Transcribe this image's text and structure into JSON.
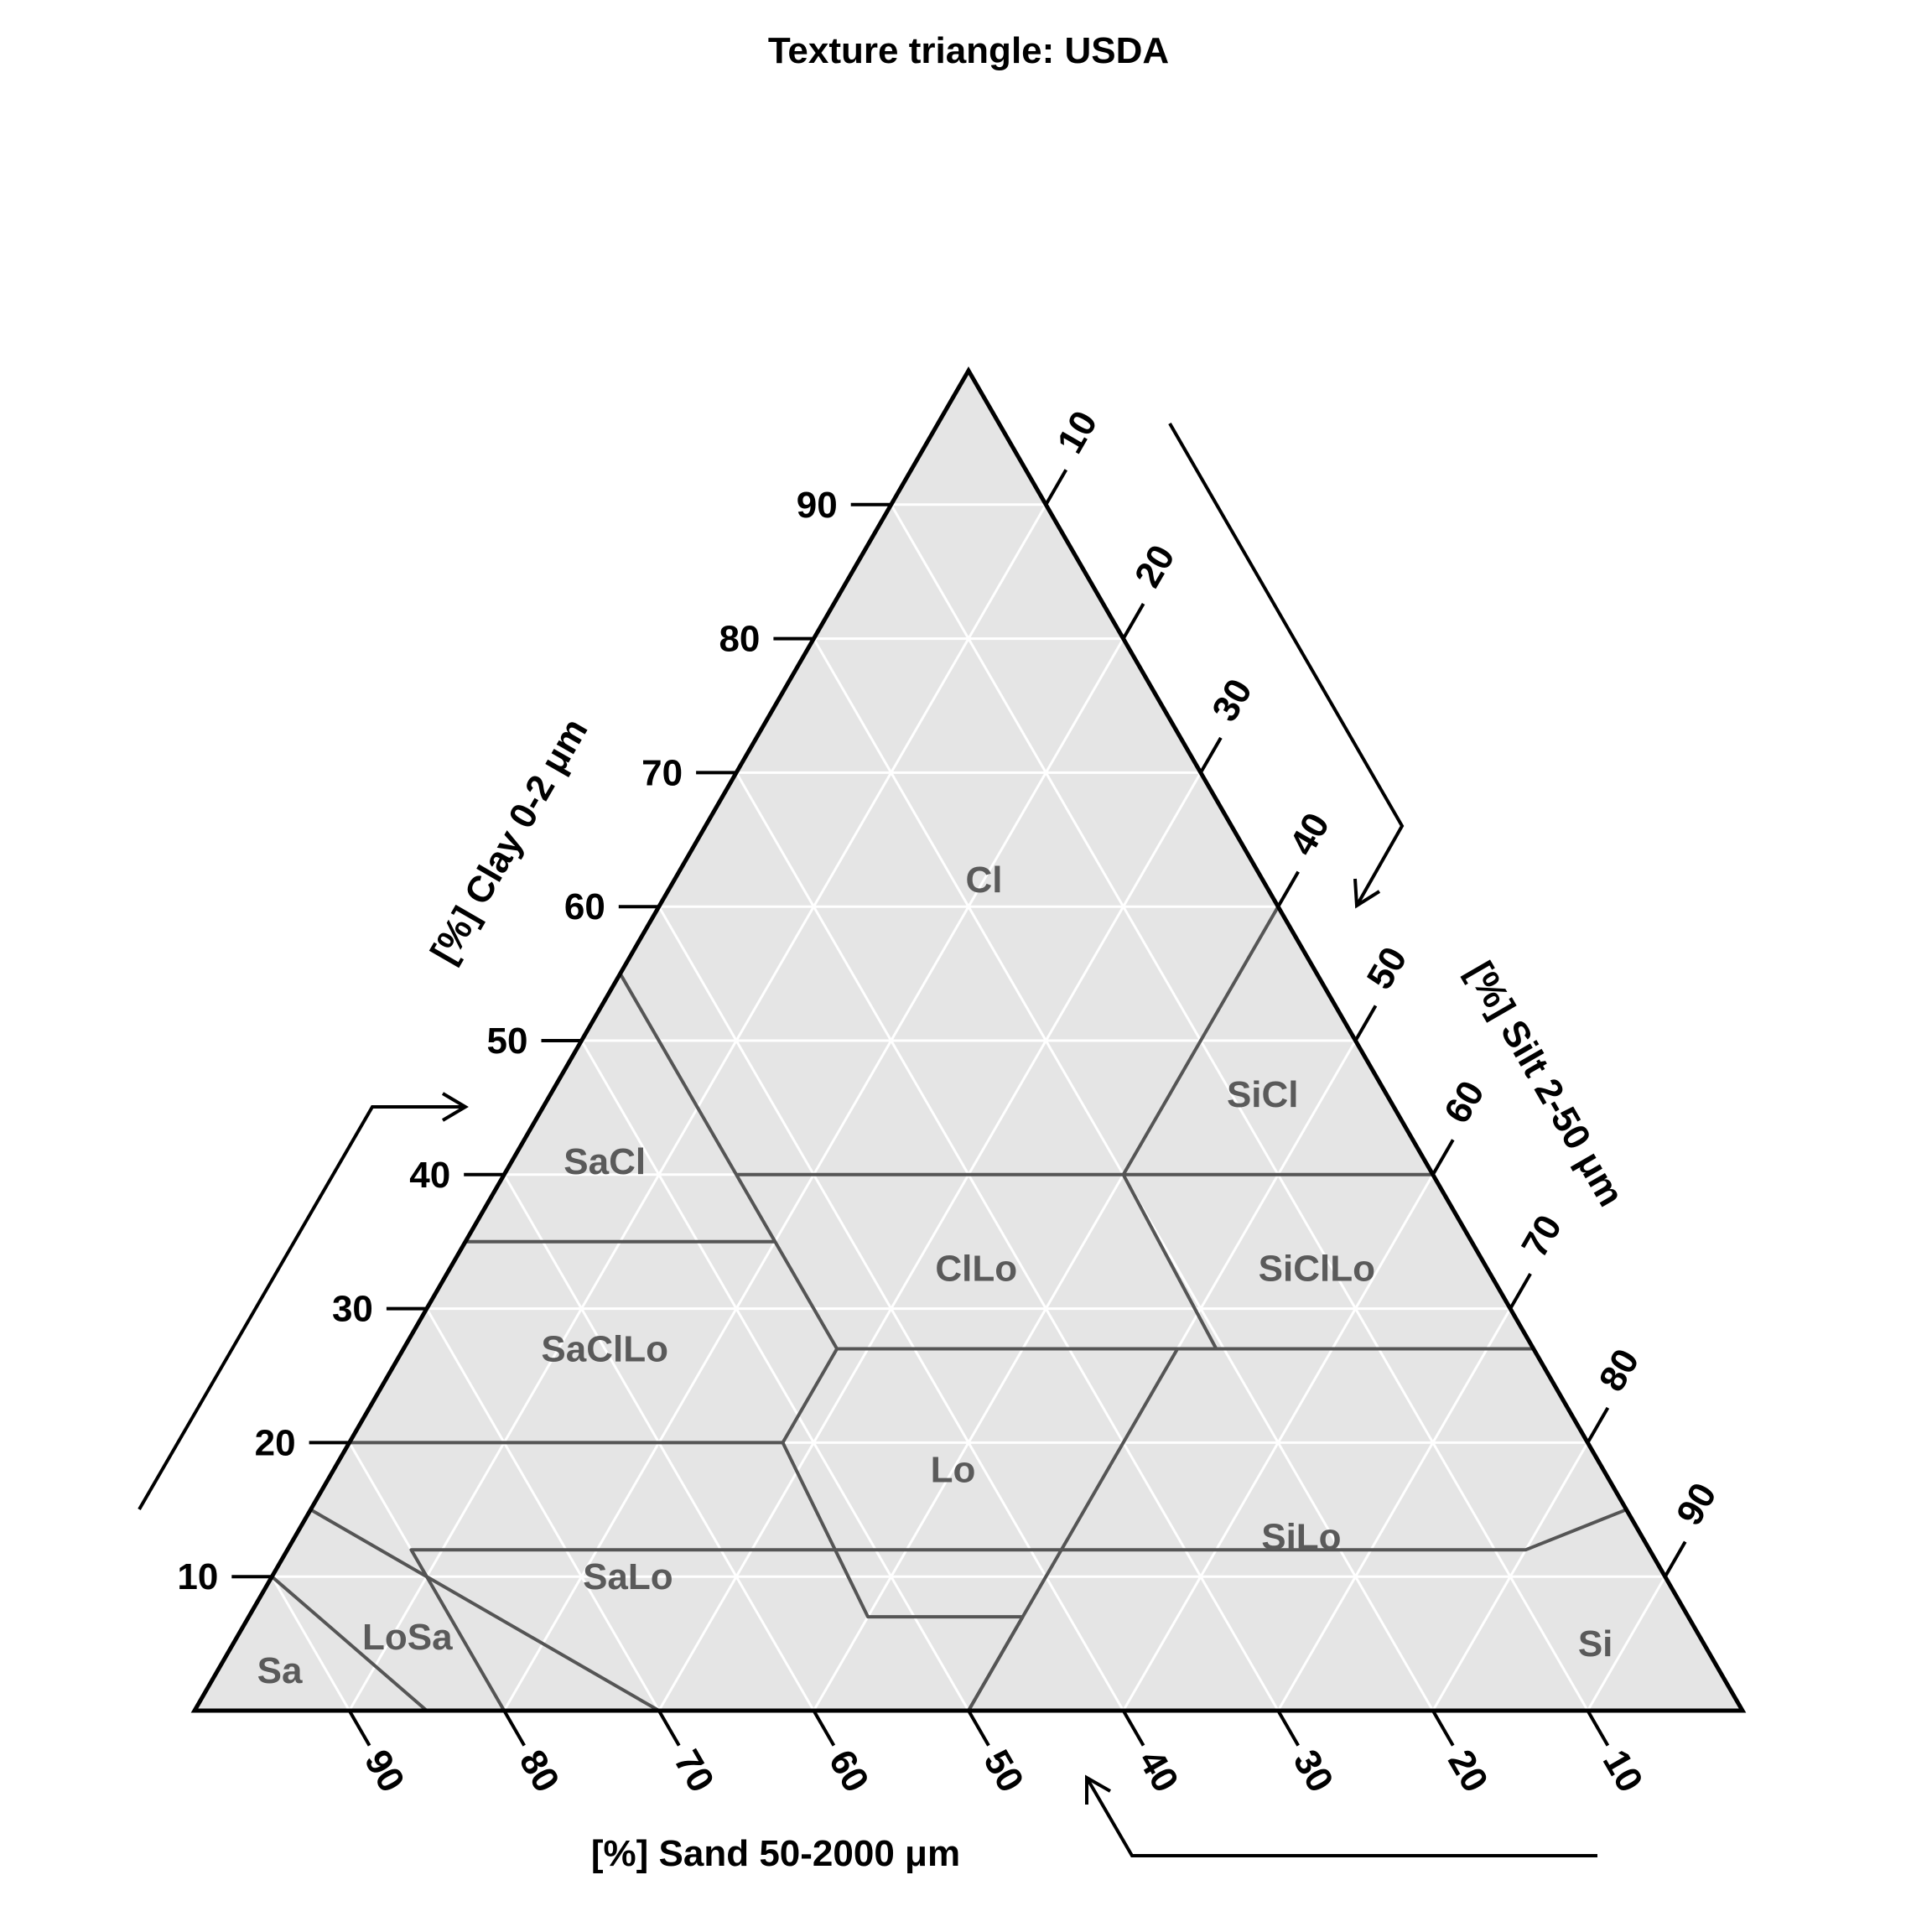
{
  "chart_data": {
    "type": "ternary",
    "title": "Texture triangle: USDA",
    "axes": {
      "clay": {
        "label": "[%] Clay 0-2 μm",
        "ticks": [
          10,
          20,
          30,
          40,
          50,
          60,
          70,
          80,
          90
        ],
        "range": [
          0,
          100
        ]
      },
      "silt": {
        "label": "[%] Silt 2-50 μm",
        "ticks": [
          10,
          20,
          30,
          40,
          50,
          60,
          70,
          80,
          90
        ],
        "range": [
          0,
          100
        ]
      },
      "sand": {
        "label": "[%] Sand 50-2000 μm",
        "ticks": [
          90,
          80,
          70,
          60,
          50,
          40,
          30,
          20,
          10
        ],
        "range": [
          0,
          100
        ]
      }
    },
    "grid": true,
    "grid_step": 10,
    "background_color": "#e5e5e5",
    "grid_color": "#ffffff",
    "boundary_color": "#555555",
    "label_color": "#5a5a5a",
    "classes": [
      {
        "label": "Cl",
        "label_point": {
          "clay": 62,
          "silt": 20,
          "sand": 18
        }
      },
      {
        "label": "SiCl",
        "label_point": {
          "clay": 46,
          "silt": 46,
          "sand": 8
        }
      },
      {
        "label": "SaCl",
        "label_point": {
          "clay": 41,
          "silt": 6,
          "sand": 53
        }
      },
      {
        "label": "ClLo",
        "label_point": {
          "clay": 33,
          "silt": 34,
          "sand": 33
        }
      },
      {
        "label": "SiClLo",
        "label_point": {
          "clay": 33,
          "silt": 56,
          "sand": 11
        }
      },
      {
        "label": "SaClLo",
        "label_point": {
          "clay": 27,
          "silt": 13,
          "sand": 60
        }
      },
      {
        "label": "Lo",
        "label_point": {
          "clay": 18,
          "silt": 40,
          "sand": 42
        }
      },
      {
        "label": "SiLo",
        "label_point": {
          "clay": 13,
          "silt": 65,
          "sand": 22
        }
      },
      {
        "label": "SaLo",
        "label_point": {
          "clay": 10,
          "silt": 23,
          "sand": 67
        }
      },
      {
        "label": "LoSa",
        "label_point": {
          "clay": 5.5,
          "silt": 11,
          "sand": 83.5
        }
      },
      {
        "label": "Sa",
        "label_point": {
          "clay": 3,
          "silt": 4,
          "sand": 93
        }
      },
      {
        "label": "Si",
        "label_point": {
          "clay": 5,
          "silt": 88,
          "sand": 7
        }
      }
    ],
    "boundaries": [
      [
        {
          "clay": 55,
          "silt": 0
        },
        {
          "clay": 40,
          "silt": 15
        },
        {
          "clay": 35,
          "silt": 20
        },
        {
          "clay": 27,
          "silt": 28
        },
        {
          "clay": 20,
          "silt": 28
        },
        {
          "clay": 7,
          "silt": 40
        },
        {
          "clay": 7,
          "silt": 50
        },
        {
          "clay": 0,
          "silt": 50
        }
      ],
      [
        {
          "clay": 40,
          "silt": 15
        },
        {
          "clay": 40,
          "silt": 60
        }
      ],
      [
        {
          "clay": 60,
          "silt": 40
        },
        {
          "clay": 40,
          "silt": 40
        },
        {
          "clay": 27,
          "silt": 52.5
        }
      ],
      [
        {
          "clay": 35,
          "silt": 0
        },
        {
          "clay": 35,
          "silt": 20
        }
      ],
      [
        {
          "clay": 27,
          "silt": 28
        },
        {
          "clay": 27,
          "silt": 73
        }
      ],
      [
        {
          "clay": 20,
          "silt": 0
        },
        {
          "clay": 20,
          "silt": 28
        }
      ],
      [
        {
          "clay": 27,
          "silt": 50
        },
        {
          "clay": 0,
          "silt": 50
        }
      ],
      [
        {
          "clay": 0,
          "silt": 20
        },
        {
          "clay": 12,
          "silt": 8
        },
        {
          "clay": 12,
          "silt": 80
        },
        {
          "clay": 15,
          "silt": 85
        }
      ],
      [
        {
          "clay": 15,
          "silt": 0
        },
        {
          "clay": 0,
          "silt": 30
        }
      ],
      [
        {
          "clay": 10,
          "silt": 0
        },
        {
          "clay": 0,
          "silt": 15
        }
      ]
    ]
  }
}
